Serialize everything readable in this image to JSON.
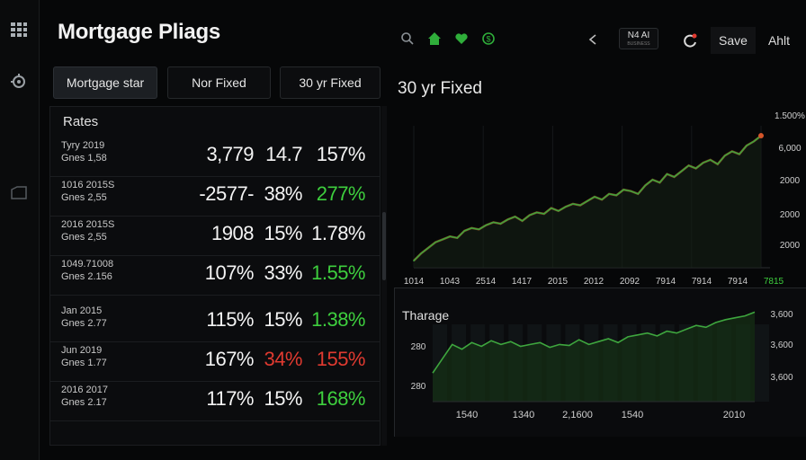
{
  "app": {
    "title": "Mortgage Pliags"
  },
  "toolbar": {
    "badge_top": "N4 AI",
    "badge_bottom": "BUSINESS",
    "save_label": "Save",
    "user_label": "Ahlt"
  },
  "tabs": [
    {
      "label": "Mortgage star",
      "active": true
    },
    {
      "label": "Nor Fixed",
      "active": false
    },
    {
      "label": "30 yr Fixed",
      "active": false
    }
  ],
  "rates": {
    "heading": "Rates",
    "rows": [
      {
        "line1": "Tyry 2019",
        "line2": "Gnes 1,58",
        "v1": "3,779",
        "v2": "14.7",
        "v3": "157%",
        "v3_color": "#f4f4f4"
      },
      {
        "line1": "1016 2015S",
        "line2": "Gnes 2,55",
        "v1": "-2577-",
        "v2": "38%",
        "v3": "277%",
        "v3_color": "#3ecf3e"
      },
      {
        "line1": "2016 2015S",
        "line2": "Gnes 2,55",
        "v1": "1908",
        "v2": "15%",
        "v3": "1.78%",
        "v3_color": "#f4f4f4"
      },
      {
        "line1": "1049.71008",
        "line2": "Gnes 2.156",
        "v1": "107%",
        "v2": "33%",
        "v3": "1.55%",
        "v3_color": "#3ecf3e"
      },
      {
        "line1": "Jan 2015",
        "line2": "Gnes 2.77",
        "v1": "115%",
        "v2": "15%",
        "v3": "1.38%",
        "v3_color": "#3ecf3e"
      },
      {
        "line1": "Jun 2019",
        "line2": "Gnes 1.77",
        "v1": "167%",
        "v2": "34%",
        "v3": "155%",
        "v3_color": "#e03a30",
        "v2_color": "#e03a30"
      },
      {
        "line1": "2016 2017",
        "line2": "Gnes 2.17",
        "v1": "117%",
        "v2": "15%",
        "v3": "168%",
        "v3_color": "#3ecf3e"
      }
    ]
  },
  "chart_data": [
    {
      "type": "line",
      "title": "30 yr Fixed",
      "x_ticks": [
        "1014",
        "1043",
        "2514",
        "1417",
        "2015",
        "2012",
        "2092",
        "7914",
        "7914",
        "7914",
        "7815"
      ],
      "y_ticks": [
        "1.500%",
        "6,000",
        "2000",
        "2000",
        "2000"
      ],
      "series": [
        {
          "color": "#3ea63e",
          "values": [
            0.05,
            0.1,
            0.14,
            0.18,
            0.2,
            0.22,
            0.21,
            0.26,
            0.28,
            0.27,
            0.3,
            0.32,
            0.31,
            0.34,
            0.36,
            0.33,
            0.37,
            0.39,
            0.38,
            0.42,
            0.4,
            0.43,
            0.45,
            0.44,
            0.47,
            0.5,
            0.48,
            0.52,
            0.51,
            0.55,
            0.54,
            0.52,
            0.58,
            0.62,
            0.6,
            0.66,
            0.64,
            0.68,
            0.72,
            0.7,
            0.74,
            0.76,
            0.73,
            0.79,
            0.82,
            0.8,
            0.86,
            0.89,
            0.93
          ]
        }
      ]
    },
    {
      "type": "area",
      "title": "Tharage",
      "x_ticks": [
        "1540",
        "1340",
        "2,1600",
        "1540",
        "2010"
      ],
      "y_ticks": [
        "3,600",
        "3,600",
        "3,600"
      ],
      "y_left_ticks": [
        "280",
        "280"
      ],
      "series": [
        {
          "color": "#3ea63e",
          "values": [
            0.3,
            0.45,
            0.6,
            0.55,
            0.62,
            0.58,
            0.64,
            0.6,
            0.63,
            0.58,
            0.6,
            0.62,
            0.57,
            0.6,
            0.59,
            0.65,
            0.6,
            0.63,
            0.66,
            0.62,
            0.68,
            0.7,
            0.72,
            0.69,
            0.74,
            0.72,
            0.76,
            0.8,
            0.78,
            0.83,
            0.86,
            0.88,
            0.9,
            0.94
          ]
        }
      ]
    }
  ]
}
